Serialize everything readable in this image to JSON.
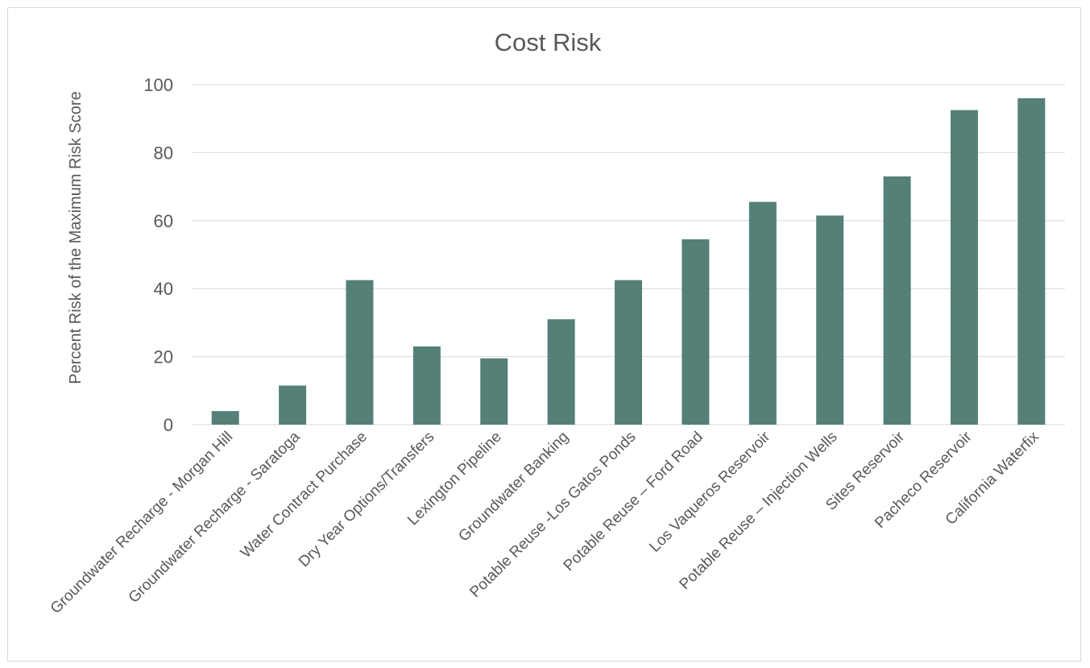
{
  "chart_data": {
    "type": "bar",
    "title": "Cost Risk",
    "xlabel": "",
    "ylabel": "Percent Risk of the Maximum Risk Score",
    "ylim": [
      0,
      100
    ],
    "yticks": [
      0,
      20,
      40,
      60,
      80,
      100
    ],
    "grid": true,
    "legend": "none",
    "bar_color": "#548078",
    "categories": [
      "Groundwater Recharge - Morgan Hill",
      "Groundwater Recharge - Saratoga",
      "Water Contract Purchase",
      "Dry Year Options/Transfers",
      "Lexington Pipeline",
      "Groundwater Banking",
      "Potable Reuse -Los Gatos Ponds",
      "Potable Reuse – Ford Road",
      "Los Vaqueros Reservoir",
      "Potable Reuse – Injection Wells",
      "Sites Reservoir",
      "Pacheco Reservoir",
      "California Waterfix"
    ],
    "values": [
      4,
      11.5,
      42.5,
      23,
      19.5,
      31,
      42.5,
      54.5,
      65.5,
      61.5,
      73,
      92.5,
      96
    ]
  }
}
